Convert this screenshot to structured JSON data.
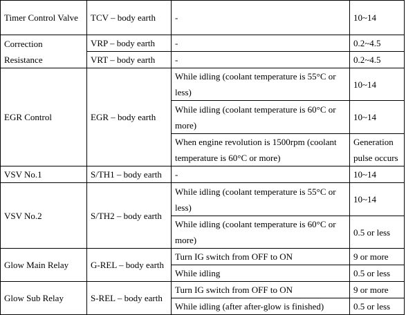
{
  "table": {
    "rows": [
      [
        "Timer Control Valve",
        "TCV – body earth",
        "-",
        "10~14"
      ],
      [
        "Correction Resistance",
        "VRP – body earth",
        "-",
        "0.2~4.5"
      ],
      [
        "VRT – body earth",
        "-",
        "0.2~4.5"
      ],
      [
        "EGR Control",
        "EGR – body earth",
        "While idling (coolant temperature is 55°C or less)",
        "10~14"
      ],
      [
        "While idling (coolant temperature is 60°C or more)",
        "10~14"
      ],
      [
        "When engine revolution is 1500rpm (coolant temperature is 60°C or more)",
        "Generation pulse occurs"
      ],
      [
        "VSV No.1",
        "S/TH1 – body earth",
        "-",
        "10~14"
      ],
      [
        "VSV No.2",
        "S/TH2 – body earth",
        "While idling (coolant temperature is 55°C or less)",
        "10~14"
      ],
      [
        "While idling (coolant temperature is 60°C or more)",
        "0.5 or less"
      ],
      [
        "Glow Main Relay",
        "G-REL – body earth",
        "Turn IG switch from OFF to ON",
        "9 or more"
      ],
      [
        "While idling",
        "0.5 or less"
      ],
      [
        "Glow Sub Relay",
        "S-REL – body earth",
        "Turn IG switch from OFF to ON",
        "9 or more"
      ],
      [
        "While idling (after after-glow is finished)",
        "0.5 or less"
      ]
    ]
  }
}
